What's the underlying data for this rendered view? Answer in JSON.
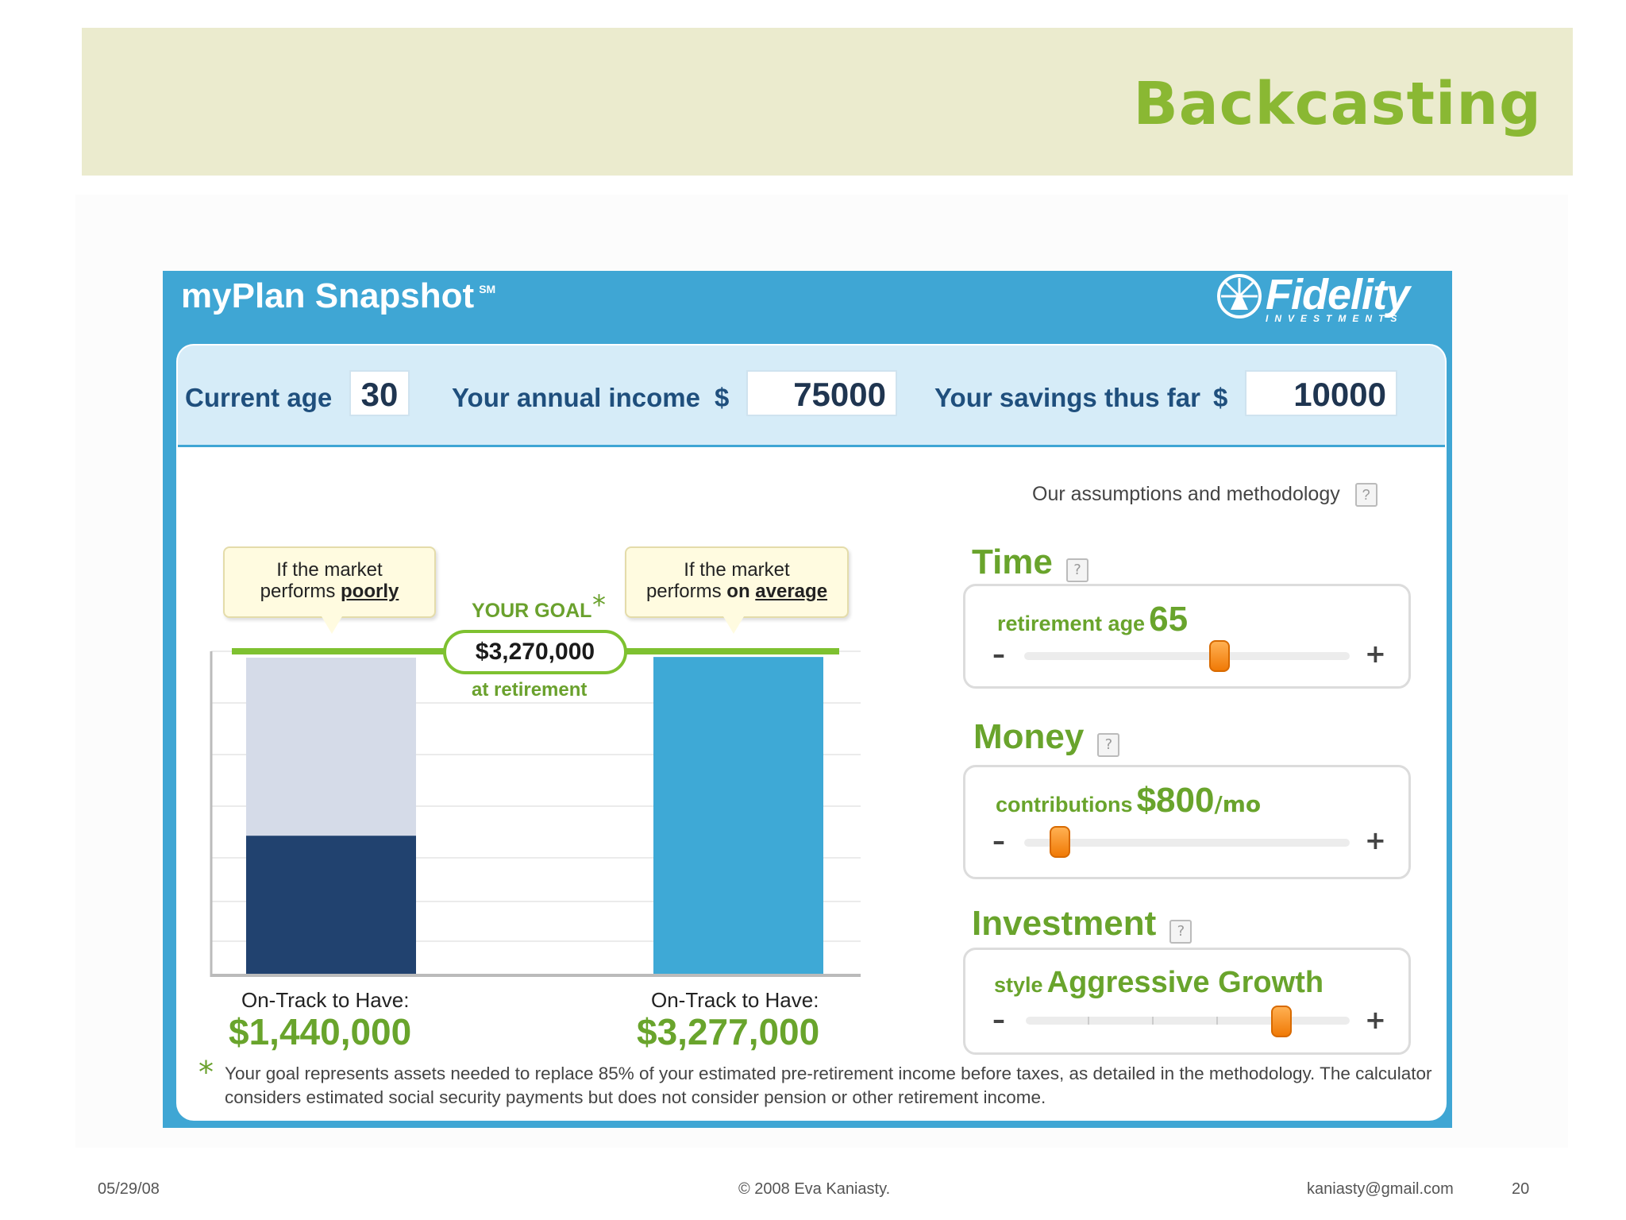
{
  "slide": {
    "title": "Backcasting",
    "footer_date": "05/29/08",
    "footer_copyright": "© 2008 Eva Kaniasty.",
    "footer_email": "kaniasty@gmail.com",
    "footer_page": "20"
  },
  "widget": {
    "title": "myPlan Snapshot",
    "title_mark": "SM",
    "brand": "Fidelity",
    "brand_sub": "INVESTMENTS"
  },
  "inputs": {
    "age_label": "Current age",
    "age_value": "30",
    "income_label": "Your annual income",
    "income_currency": "$",
    "income_value": "75000",
    "savings_label": "Your savings thus far",
    "savings_currency": "$",
    "savings_value": "10000"
  },
  "assumptions_link": "Our assumptions and methodology",
  "help_glyph": "?",
  "goal": {
    "label": "YOUR GOAL",
    "star": "*",
    "amount": "$3,270,000",
    "sub": "at retirement"
  },
  "scenarios": [
    {
      "callout_line1": "If the market",
      "callout_line2_prefix": "performs ",
      "callout_line2_emph": "poorly",
      "ontrack_label": "On-Track to Have:",
      "ontrack_value": "$1,440,000"
    },
    {
      "callout_line1": "If the market",
      "callout_line2_prefix": "performs ",
      "callout_line2_bold": "on ",
      "callout_line2_emph": "average",
      "ontrack_label": "On-Track to Have:",
      "ontrack_value": "$3,277,000"
    }
  ],
  "chart": {
    "goal_value": 3270000,
    "poor_value": 1440000,
    "average_value": 3277000,
    "colors": {
      "poor": "#21426f",
      "poor_gap": "#d5dbe8",
      "average": "#3ea9d6",
      "goal_line": "#7ec130"
    }
  },
  "controls": {
    "time": {
      "title": "Time",
      "label": "retirement age",
      "value": "65",
      "slider_fraction": 0.6
    },
    "money": {
      "title": "Money",
      "label": "contributions",
      "value": "$800",
      "unit": "/mo",
      "slider_fraction": 0.11
    },
    "investment": {
      "title": "Investment",
      "label": "style",
      "value": "Aggressive Growth",
      "slider_fraction": 0.79
    },
    "minus_glyph": "–",
    "plus_glyph": "+"
  },
  "footnote": {
    "star": "*",
    "text": "Your goal represents assets needed to replace 85% of your estimated pre-retirement income before taxes, as detailed in the methodology. The calculator considers estimated social security payments but does not consider pension or other retirement income."
  }
}
